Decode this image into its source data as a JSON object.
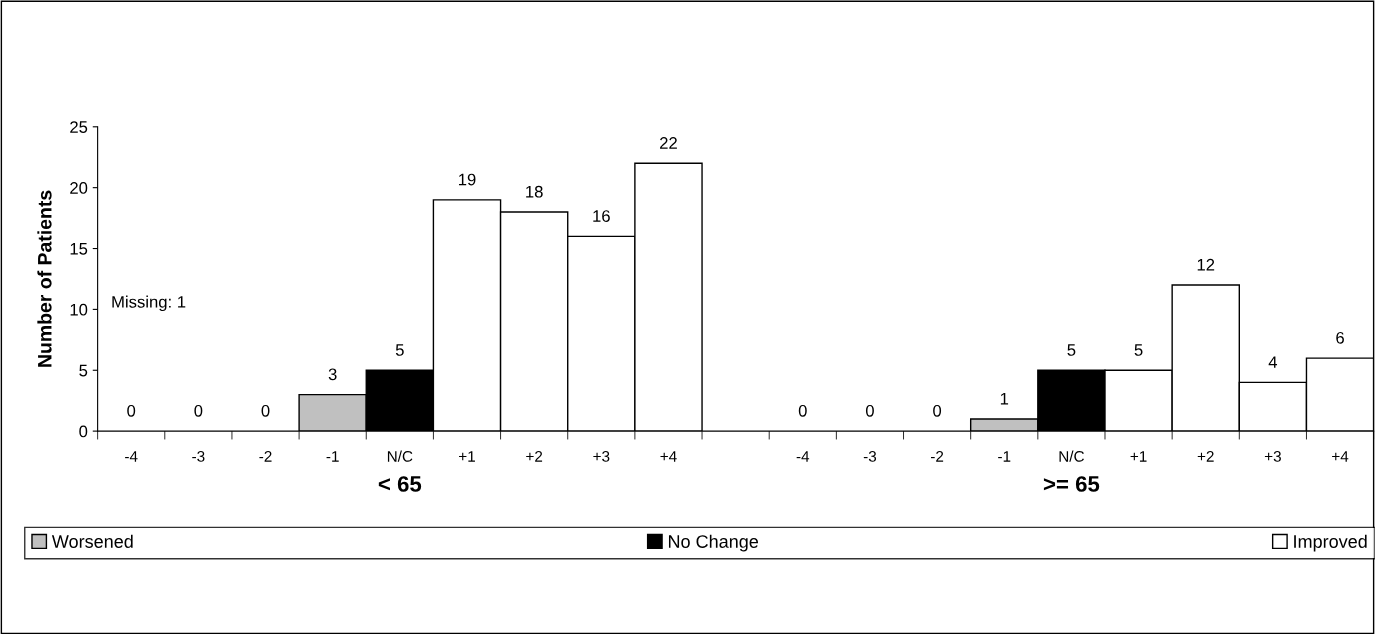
{
  "chart_data": {
    "type": "bar",
    "ylabel": "Number of Patients",
    "categories": [
      "-4",
      "-3",
      "-2",
      "-1",
      "N/C",
      "+1",
      "+2",
      "+3",
      "+4",
      null,
      "-4",
      "-3",
      "-2",
      "-1",
      "N/C",
      "+1",
      "+2",
      "+3",
      "+4"
    ],
    "series": [
      {
        "name": "Worsened",
        "color": "#c0c0c0",
        "values": [
          0,
          0,
          0,
          3,
          null,
          null,
          null,
          null,
          null,
          null,
          0,
          0,
          0,
          1,
          null,
          null,
          null,
          null,
          null
        ]
      },
      {
        "name": "No Change",
        "color": "#000000",
        "values": [
          null,
          null,
          null,
          null,
          5,
          null,
          null,
          null,
          null,
          null,
          null,
          null,
          null,
          null,
          5,
          null,
          null,
          null,
          null
        ]
      },
      {
        "name": "Improved",
        "color": "#ffffff",
        "values": [
          null,
          null,
          null,
          null,
          null,
          19,
          18,
          16,
          22,
          null,
          null,
          null,
          null,
          null,
          null,
          5,
          12,
          4,
          6
        ]
      }
    ],
    "ylim": [
      0,
      25
    ],
    "yticks": [
      0,
      5,
      10,
      15,
      20,
      25
    ],
    "grid": false,
    "legend": "bottom",
    "data_labels": true,
    "annotations": [
      "Missing: 1",
      "< 65",
      ">= 65"
    ]
  }
}
